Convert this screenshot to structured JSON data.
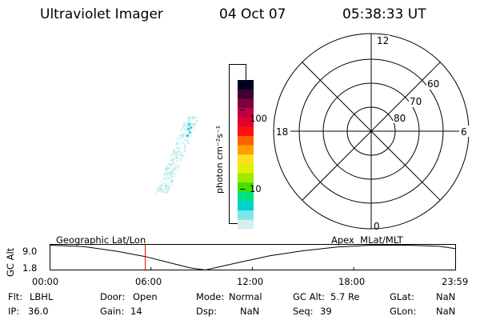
{
  "header": {
    "instrument": "Ultraviolet Imager",
    "date": "04 Oct 07",
    "time": "05:38:33 UT"
  },
  "colorbar": {
    "unit_label": "photon cm⁻²s⁻¹",
    "ticks": [
      "100",
      "10"
    ],
    "colors": [
      "#ffffff",
      "#d6f0f0",
      "#7fe6e6",
      "#00d2d2",
      "#00e080",
      "#40e000",
      "#a0e800",
      "#e0f000",
      "#ffe020",
      "#ffa000",
      "#ff6000",
      "#ff1010",
      "#e00030",
      "#c00040",
      "#800040",
      "#400030",
      "#000020"
    ]
  },
  "polar_plot": {
    "mlt_labels": [
      "12",
      "6",
      "0",
      "18"
    ],
    "lat_labels": [
      "60",
      "70",
      "80"
    ]
  },
  "orbit_plot": {
    "left_title": "Geographic Lat/Lon",
    "right_title": "Apex  MLat/MLT",
    "y_axis_title": "GC Alt",
    "y_ticks": [
      "9.0",
      "1.8"
    ],
    "x_ticks": [
      "00:00",
      "06:00",
      "12:00",
      "18:00",
      "23:59"
    ],
    "current_time_color": "#dd0000"
  },
  "chart_data": {
    "type": "line",
    "title": "",
    "xlabel": "",
    "ylabel": "GC Alt",
    "x": [
      0,
      2,
      4,
      5.64,
      7,
      8.3,
      9.2,
      11,
      13,
      15,
      17,
      19,
      21,
      23,
      23.98
    ],
    "y": [
      9.0,
      8.6,
      7.2,
      5.7,
      4.0,
      2.4,
      1.8,
      3.8,
      5.9,
      7.4,
      8.5,
      9.0,
      9.0,
      8.7,
      8.0
    ],
    "xlim": [
      0,
      24
    ],
    "ylim": [
      1.8,
      9.0
    ],
    "current_time_hours": 5.64
  },
  "status": {
    "row1": [
      {
        "label": "Flt:",
        "value": "LBHL"
      },
      {
        "label": "Door:",
        "value": "Open"
      },
      {
        "label": "Mode:",
        "value": "Normal"
      },
      {
        "label": "GC Alt:",
        "value": "5.7 Re"
      },
      {
        "label": "GLat:",
        "value": "NaN"
      }
    ],
    "row2": [
      {
        "label": "IP:",
        "value": "36.0"
      },
      {
        "label": "Gain:",
        "value": "14"
      },
      {
        "label": "Dsp:",
        "value": "NaN"
      },
      {
        "label": "Seq:",
        "value": "39"
      },
      {
        "label": "GLon:",
        "value": "NaN"
      }
    ]
  }
}
